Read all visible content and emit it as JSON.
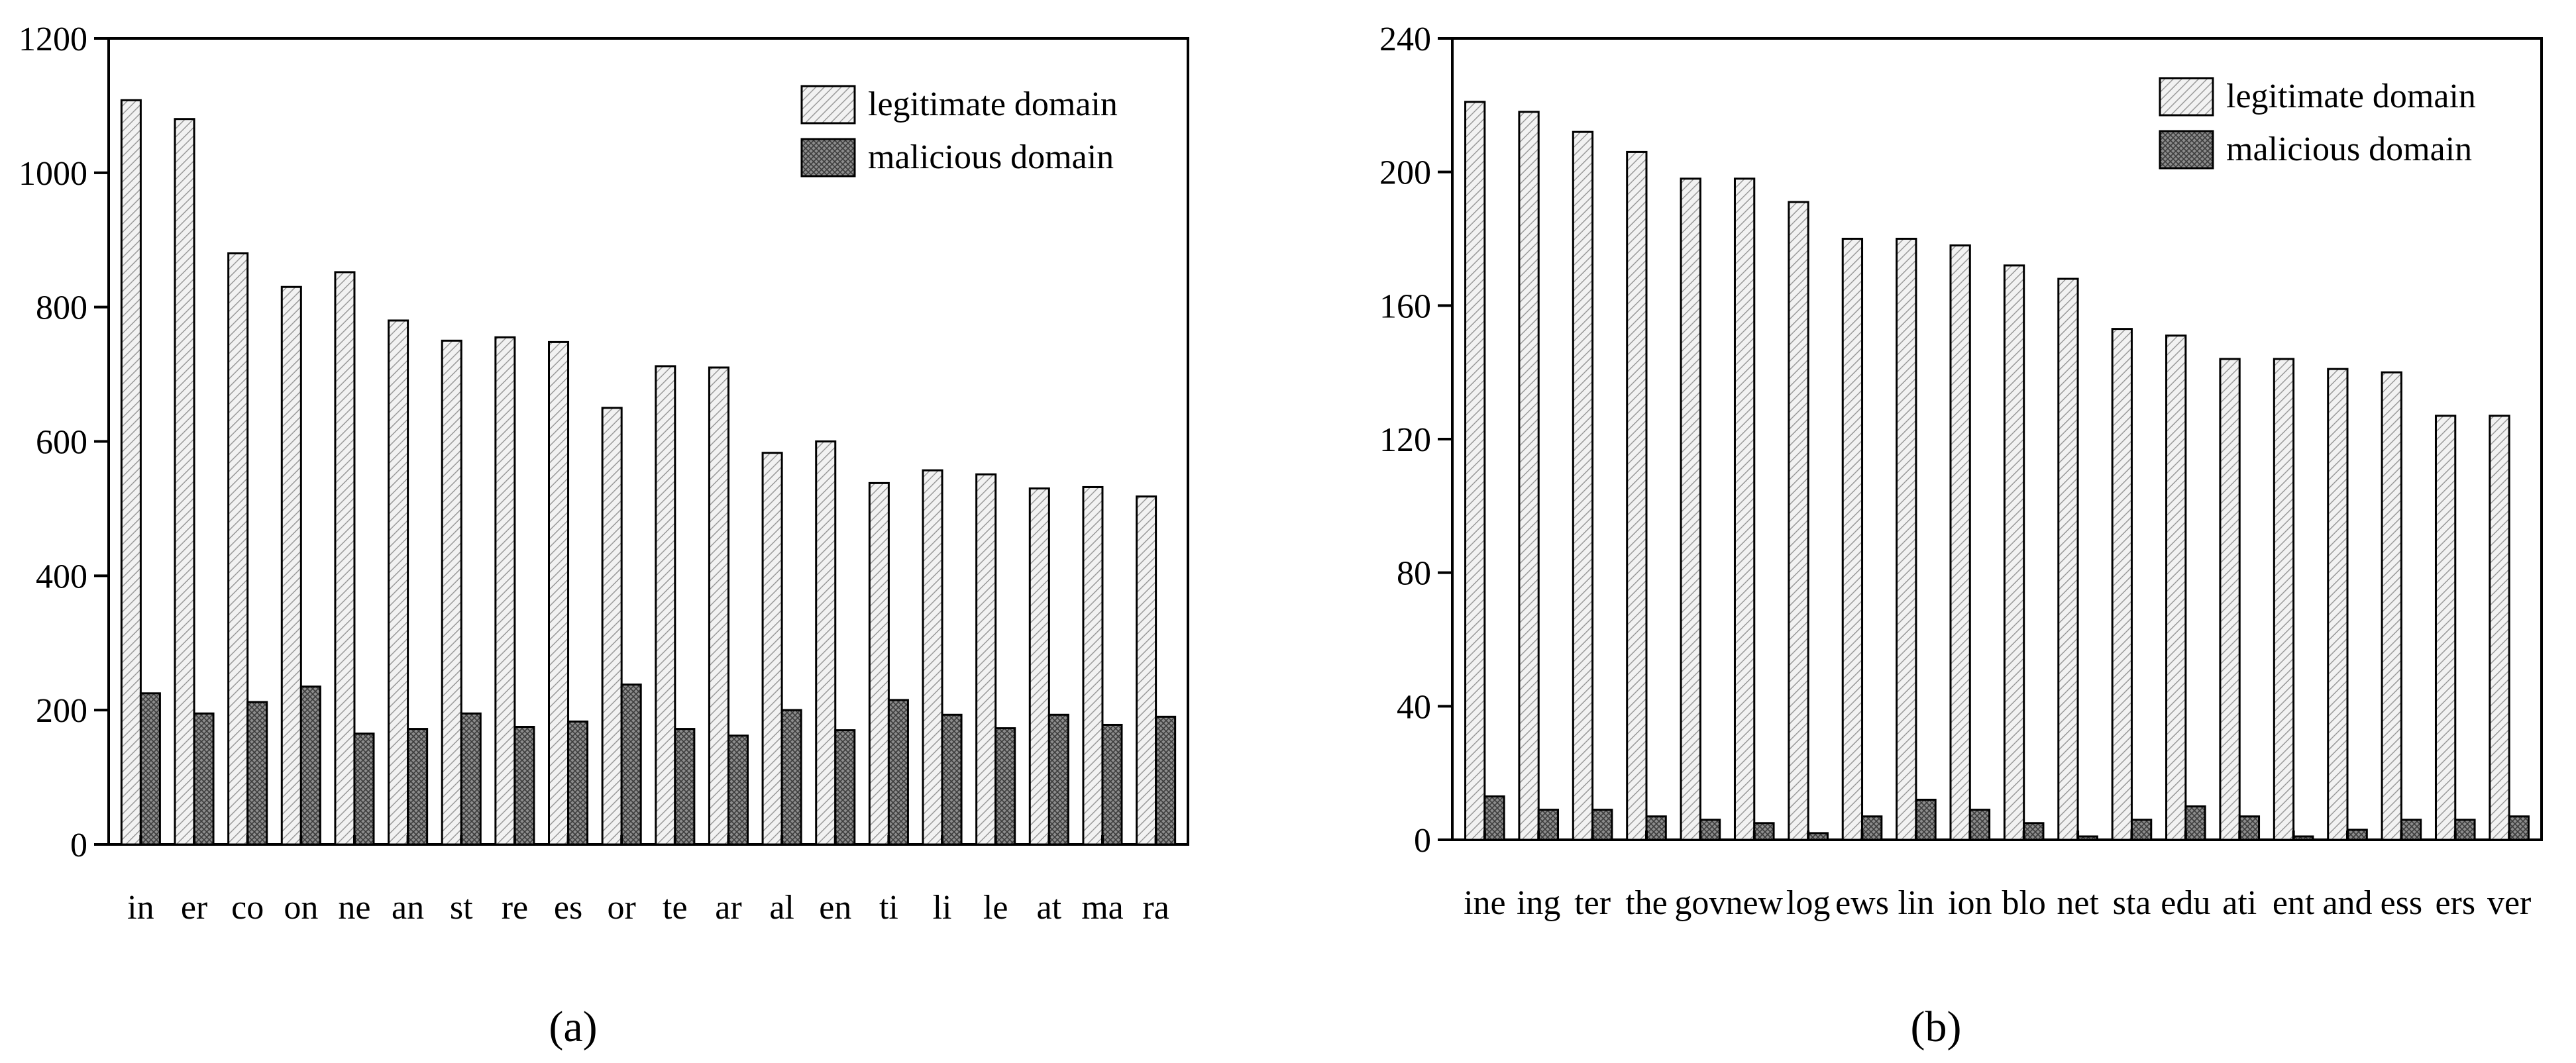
{
  "chart_data": [
    {
      "type": "bar",
      "panel_label": "(a)",
      "categories": [
        "in",
        "er",
        "co",
        "on",
        "ne",
        "an",
        "st",
        "re",
        "es",
        "or",
        "te",
        "ar",
        "al",
        "en",
        "ti",
        "li",
        "le",
        "at",
        "ma",
        "ra"
      ],
      "series": [
        {
          "name": "legitimate domain",
          "pattern": "hatched-light",
          "values": [
            1108,
            1080,
            880,
            830,
            852,
            780,
            750,
            755,
            748,
            650,
            712,
            710,
            583,
            600,
            538,
            557,
            551,
            530,
            532,
            518
          ]
        },
        {
          "name": "malicious domain",
          "pattern": "crosshatched-dark",
          "values": [
            225,
            195,
            212,
            235,
            165,
            172,
            195,
            175,
            183,
            238,
            172,
            162,
            200,
            170,
            215,
            193,
            173,
            193,
            178,
            190
          ]
        }
      ],
      "ylim": [
        0,
        1200
      ],
      "yticks": [
        0,
        200,
        400,
        600,
        800,
        1000,
        1200
      ],
      "legend_position": "top-right",
      "grid": false
    },
    {
      "type": "bar",
      "panel_label": "(b)",
      "categories": [
        "ine",
        "ing",
        "ter",
        "the",
        "gov",
        "new",
        "log",
        "ews",
        "lin",
        "ion",
        "blo",
        "net",
        "sta",
        "edu",
        "ati",
        "ent",
        "and",
        "ess",
        "ers",
        "ver"
      ],
      "series": [
        {
          "name": "legitimate domain",
          "pattern": "hatched-light",
          "values": [
            221,
            218,
            212,
            206,
            198,
            198,
            191,
            180,
            180,
            178,
            172,
            168,
            153,
            151,
            144,
            144,
            141,
            140,
            127,
            127
          ]
        },
        {
          "name": "malicious domain",
          "pattern": "crosshatched-dark",
          "values": [
            13,
            9,
            9,
            7,
            6,
            5,
            2,
            7,
            12,
            9,
            5,
            1,
            6,
            10,
            7,
            1,
            3,
            6,
            6,
            7
          ]
        }
      ],
      "ylim": [
        0,
        240
      ],
      "yticks": [
        0,
        40,
        80,
        120,
        160,
        200,
        240
      ],
      "legend_position": "top-right",
      "grid": false
    }
  ]
}
